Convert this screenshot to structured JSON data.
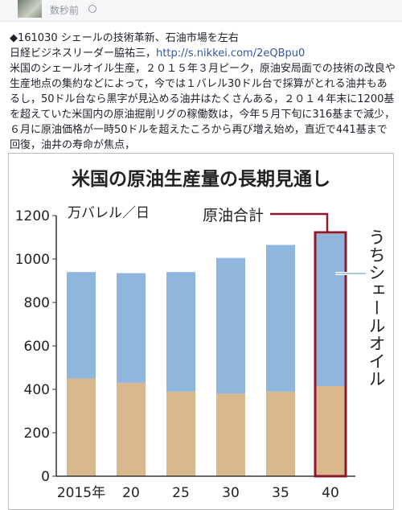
{
  "post": {
    "time": "数秒前",
    "headline": "◆161030 シェールの技術革新、石油市場を左右",
    "source": "日経ビジネスリーダー脇祐三，",
    "link": "http://s.nikkei.com/2eQBpu0",
    "body": "米国のシェールオイル生産，２０１５年３月ピーク，原油安局面での技術の改良や生産地点の集約などによって，今では１バレル30ドル台で採算がとれる油井もあるし，50ドル台なら黒字が見込める油井はたくさんある，２０１４年末に1200基を超えていた米国内の原油掘削リグの稼働数は，今年５月下旬に316基まで減少，６月に原油価格が一時50ドルを超えたころから再び増え始め，直近で441基まで回復，油井の寿命が焦点，"
  },
  "chart_data": {
    "type": "stacked_bar",
    "title": "米国の原油生産量の長期見通し",
    "y_label": "万バレル／日",
    "annotation_total": "原油合計",
    "categories": [
      "2015年",
      "20",
      "25",
      "30",
      "35",
      "40"
    ],
    "series": [
      {
        "color": "#d9b88e",
        "values": [
          450,
          430,
          390,
          380,
          390,
          415
        ]
      },
      {
        "name": "うちシェールオイル",
        "color": "#8fb6dd",
        "values": [
          490,
          505,
          550,
          625,
          675,
          700
        ]
      }
    ],
    "ylim": [
      0,
      1200
    ],
    "yticks": [
      0,
      200,
      400,
      600,
      800,
      1000,
      1200
    ],
    "grid": false,
    "highlight": {
      "category_index": 5,
      "color": "#8b1a2b"
    }
  }
}
